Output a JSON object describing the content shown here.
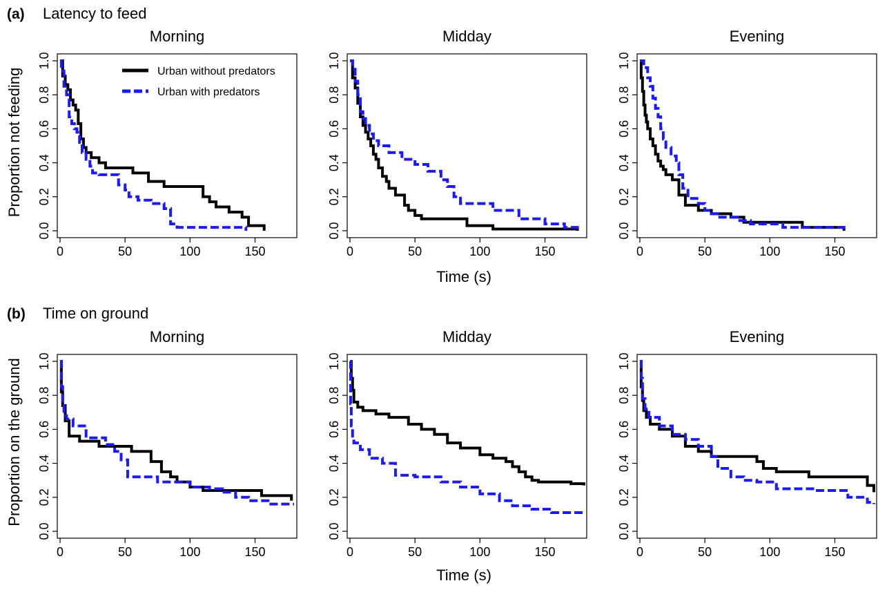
{
  "figure": {
    "panel_a": {
      "label": "(a)",
      "title": "Latency to feed"
    },
    "panel_b": {
      "label": "(b)",
      "title": "Time on ground"
    },
    "xlabel": "Time (s)",
    "ylabel_a": "Proportion not feeding",
    "ylabel_b": "Proportion on the ground",
    "legend": [
      {
        "label": "Urban without predators",
        "color": "#000000",
        "style": "solid"
      },
      {
        "label": "Urban with predators",
        "color": "#1a1aff",
        "style": "dashed"
      }
    ],
    "colors": {
      "without": "#000000",
      "with": "#1a1aff"
    }
  },
  "chart_data": [
    {
      "type": "line",
      "step": true,
      "panel": "(a)",
      "title": "Morning",
      "xlabel": "",
      "ylabel": "Proportion not feeding",
      "xlim": [
        0,
        180
      ],
      "ylim": [
        0,
        1
      ],
      "xticks": [
        0,
        50,
        100,
        150
      ],
      "yticks": [
        0.0,
        0.2,
        0.4,
        0.6,
        0.8,
        1.0
      ],
      "legend_position": "top-right",
      "series": [
        {
          "name": "Urban without predators",
          "x": [
            0,
            2,
            4,
            6,
            8,
            10,
            12,
            14,
            16,
            18,
            20,
            24,
            30,
            35,
            42,
            56,
            68,
            80,
            103,
            110,
            115,
            120,
            130,
            140,
            145,
            157
          ],
          "y": [
            1.0,
            0.91,
            0.86,
            0.83,
            0.77,
            0.74,
            0.71,
            0.63,
            0.54,
            0.49,
            0.46,
            0.43,
            0.4,
            0.37,
            0.37,
            0.34,
            0.29,
            0.26,
            0.26,
            0.2,
            0.17,
            0.14,
            0.11,
            0.08,
            0.03,
            0.0
          ]
        },
        {
          "name": "Urban with predators",
          "x": [
            0,
            1,
            3,
            5,
            7,
            9,
            11,
            13,
            15,
            17,
            20,
            23,
            25,
            30,
            37,
            45,
            50,
            53,
            60,
            70,
            80,
            85,
            90,
            143
          ],
          "y": [
            1.0,
            0.94,
            0.85,
            0.8,
            0.67,
            0.63,
            0.6,
            0.58,
            0.52,
            0.46,
            0.42,
            0.38,
            0.34,
            0.33,
            0.33,
            0.27,
            0.24,
            0.2,
            0.18,
            0.16,
            0.13,
            0.04,
            0.02,
            0.0
          ]
        }
      ]
    },
    {
      "type": "line",
      "step": true,
      "panel": "(a)",
      "title": "Midday",
      "xlabel": "Time (s)",
      "ylabel": "",
      "xlim": [
        0,
        180
      ],
      "ylim": [
        0,
        1
      ],
      "xticks": [
        0,
        50,
        100,
        150
      ],
      "yticks": [
        0.0,
        0.2,
        0.4,
        0.6,
        0.8,
        1.0
      ],
      "series": [
        {
          "name": "Urban without predators",
          "x": [
            0,
            2,
            4,
            6,
            8,
            10,
            12,
            14,
            16,
            18,
            20,
            22,
            25,
            28,
            30,
            35,
            42,
            45,
            50,
            55,
            75,
            90,
            110,
            170,
            175
          ],
          "y": [
            1.0,
            0.9,
            0.84,
            0.75,
            0.67,
            0.62,
            0.58,
            0.54,
            0.5,
            0.45,
            0.42,
            0.37,
            0.32,
            0.29,
            0.25,
            0.21,
            0.15,
            0.12,
            0.09,
            0.07,
            0.07,
            0.03,
            0.01,
            0.01,
            0.0
          ]
        },
        {
          "name": "Urban with predators",
          "x": [
            0,
            2,
            4,
            6,
            8,
            10,
            12,
            15,
            18,
            22,
            30,
            40,
            50,
            60,
            70,
            75,
            80,
            85,
            95,
            110,
            130,
            150,
            165,
            175
          ],
          "y": [
            1.0,
            0.95,
            0.88,
            0.8,
            0.7,
            0.66,
            0.62,
            0.57,
            0.53,
            0.5,
            0.46,
            0.42,
            0.39,
            0.35,
            0.3,
            0.26,
            0.2,
            0.16,
            0.16,
            0.12,
            0.07,
            0.04,
            0.02,
            0.0
          ]
        }
      ]
    },
    {
      "type": "line",
      "step": true,
      "panel": "(a)",
      "title": "Evening",
      "xlabel": "",
      "ylabel": "",
      "xlim": [
        0,
        180
      ],
      "ylim": [
        0,
        1
      ],
      "xticks": [
        0,
        50,
        100,
        150
      ],
      "yticks": [
        0.0,
        0.2,
        0.4,
        0.6,
        0.8,
        1.0
      ],
      "series": [
        {
          "name": "Urban without predators",
          "x": [
            0,
            1,
            2,
            3,
            4,
            5,
            6,
            8,
            10,
            12,
            14,
            16,
            18,
            20,
            25,
            30,
            35,
            45,
            55,
            70,
            80,
            125,
            157
          ],
          "y": [
            1.0,
            0.9,
            0.82,
            0.74,
            0.68,
            0.64,
            0.6,
            0.54,
            0.5,
            0.45,
            0.41,
            0.38,
            0.36,
            0.33,
            0.3,
            0.21,
            0.15,
            0.12,
            0.1,
            0.08,
            0.05,
            0.02,
            0.0
          ]
        },
        {
          "name": "Urban with predators",
          "x": [
            0,
            3,
            6,
            8,
            10,
            12,
            14,
            16,
            18,
            20,
            24,
            28,
            30,
            33,
            37,
            45,
            50,
            55,
            60,
            75,
            85,
            110,
            157
          ],
          "y": [
            1.0,
            0.96,
            0.9,
            0.85,
            0.78,
            0.72,
            0.67,
            0.6,
            0.54,
            0.49,
            0.44,
            0.4,
            0.33,
            0.25,
            0.19,
            0.16,
            0.12,
            0.1,
            0.08,
            0.06,
            0.04,
            0.02,
            0.0
          ]
        }
      ]
    },
    {
      "type": "line",
      "step": true,
      "panel": "(b)",
      "title": "Morning",
      "xlabel": "",
      "ylabel": "Proportion on the ground",
      "xlim": [
        0,
        180
      ],
      "ylim": [
        0,
        1
      ],
      "xticks": [
        0,
        50,
        100,
        150
      ],
      "yticks": [
        0.0,
        0.2,
        0.4,
        0.6,
        0.8,
        1.0
      ],
      "series": [
        {
          "name": "Urban without predators",
          "x": [
            0,
            1,
            2,
            4,
            7,
            15,
            30,
            55,
            70,
            78,
            85,
            90,
            100,
            110,
            155,
            178
          ],
          "y": [
            1.0,
            0.82,
            0.74,
            0.65,
            0.56,
            0.53,
            0.5,
            0.47,
            0.41,
            0.35,
            0.32,
            0.29,
            0.26,
            0.24,
            0.21,
            0.18
          ]
        },
        {
          "name": "Urban with predators",
          "x": [
            0,
            1,
            2,
            3,
            5,
            10,
            20,
            35,
            42,
            47,
            52,
            75,
            100,
            115,
            125,
            135,
            145,
            160,
            180
          ],
          "y": [
            1.0,
            0.85,
            0.74,
            0.68,
            0.66,
            0.62,
            0.55,
            0.51,
            0.47,
            0.42,
            0.32,
            0.29,
            0.26,
            0.25,
            0.23,
            0.2,
            0.18,
            0.16,
            0.16
          ]
        }
      ]
    },
    {
      "type": "line",
      "step": true,
      "panel": "(b)",
      "title": "Midday",
      "xlabel": "Time (s)",
      "ylabel": "",
      "xlim": [
        0,
        180
      ],
      "ylim": [
        0,
        1
      ],
      "xticks": [
        0,
        50,
        100,
        150
      ],
      "yticks": [
        0.0,
        0.2,
        0.4,
        0.6,
        0.8,
        1.0
      ],
      "series": [
        {
          "name": "Urban without predators",
          "x": [
            0,
            1,
            2,
            3,
            6,
            10,
            20,
            30,
            45,
            55,
            65,
            75,
            85,
            100,
            110,
            120,
            125,
            130,
            135,
            140,
            145,
            150,
            170,
            180
          ],
          "y": [
            1.0,
            0.9,
            0.83,
            0.76,
            0.73,
            0.71,
            0.69,
            0.67,
            0.63,
            0.6,
            0.57,
            0.52,
            0.49,
            0.45,
            0.43,
            0.41,
            0.38,
            0.35,
            0.32,
            0.3,
            0.29,
            0.29,
            0.28,
            0.27
          ]
        },
        {
          "name": "Urban with predators",
          "x": [
            0,
            0.5,
            1,
            2,
            3,
            8,
            15,
            25,
            35,
            50,
            70,
            85,
            100,
            115,
            125,
            140,
            155,
            180
          ],
          "y": [
            1.0,
            0.75,
            0.62,
            0.54,
            0.52,
            0.48,
            0.43,
            0.4,
            0.33,
            0.32,
            0.29,
            0.26,
            0.22,
            0.18,
            0.15,
            0.13,
            0.11,
            0.1
          ]
        }
      ]
    },
    {
      "type": "line",
      "step": true,
      "panel": "(b)",
      "title": "Evening",
      "xlabel": "",
      "ylabel": "",
      "xlim": [
        0,
        180
      ],
      "ylim": [
        0,
        1
      ],
      "xticks": [
        0,
        50,
        100,
        150
      ],
      "yticks": [
        0.0,
        0.2,
        0.4,
        0.6,
        0.8,
        1.0
      ],
      "series": [
        {
          "name": "Urban without predators",
          "x": [
            0,
            1,
            2,
            3,
            5,
            8,
            15,
            25,
            35,
            45,
            55,
            90,
            95,
            105,
            130,
            175,
            180
          ],
          "y": [
            1.0,
            0.85,
            0.77,
            0.71,
            0.67,
            0.63,
            0.6,
            0.56,
            0.5,
            0.47,
            0.44,
            0.41,
            0.37,
            0.35,
            0.32,
            0.27,
            0.23
          ]
        },
        {
          "name": "Urban with predators",
          "x": [
            0,
            1,
            2,
            4,
            7,
            15,
            25,
            35,
            45,
            55,
            60,
            70,
            80,
            90,
            105,
            135,
            160,
            175,
            180
          ],
          "y": [
            1.0,
            0.9,
            0.78,
            0.72,
            0.67,
            0.62,
            0.57,
            0.54,
            0.5,
            0.44,
            0.37,
            0.32,
            0.3,
            0.29,
            0.25,
            0.24,
            0.2,
            0.17,
            0.16
          ]
        }
      ]
    }
  ]
}
